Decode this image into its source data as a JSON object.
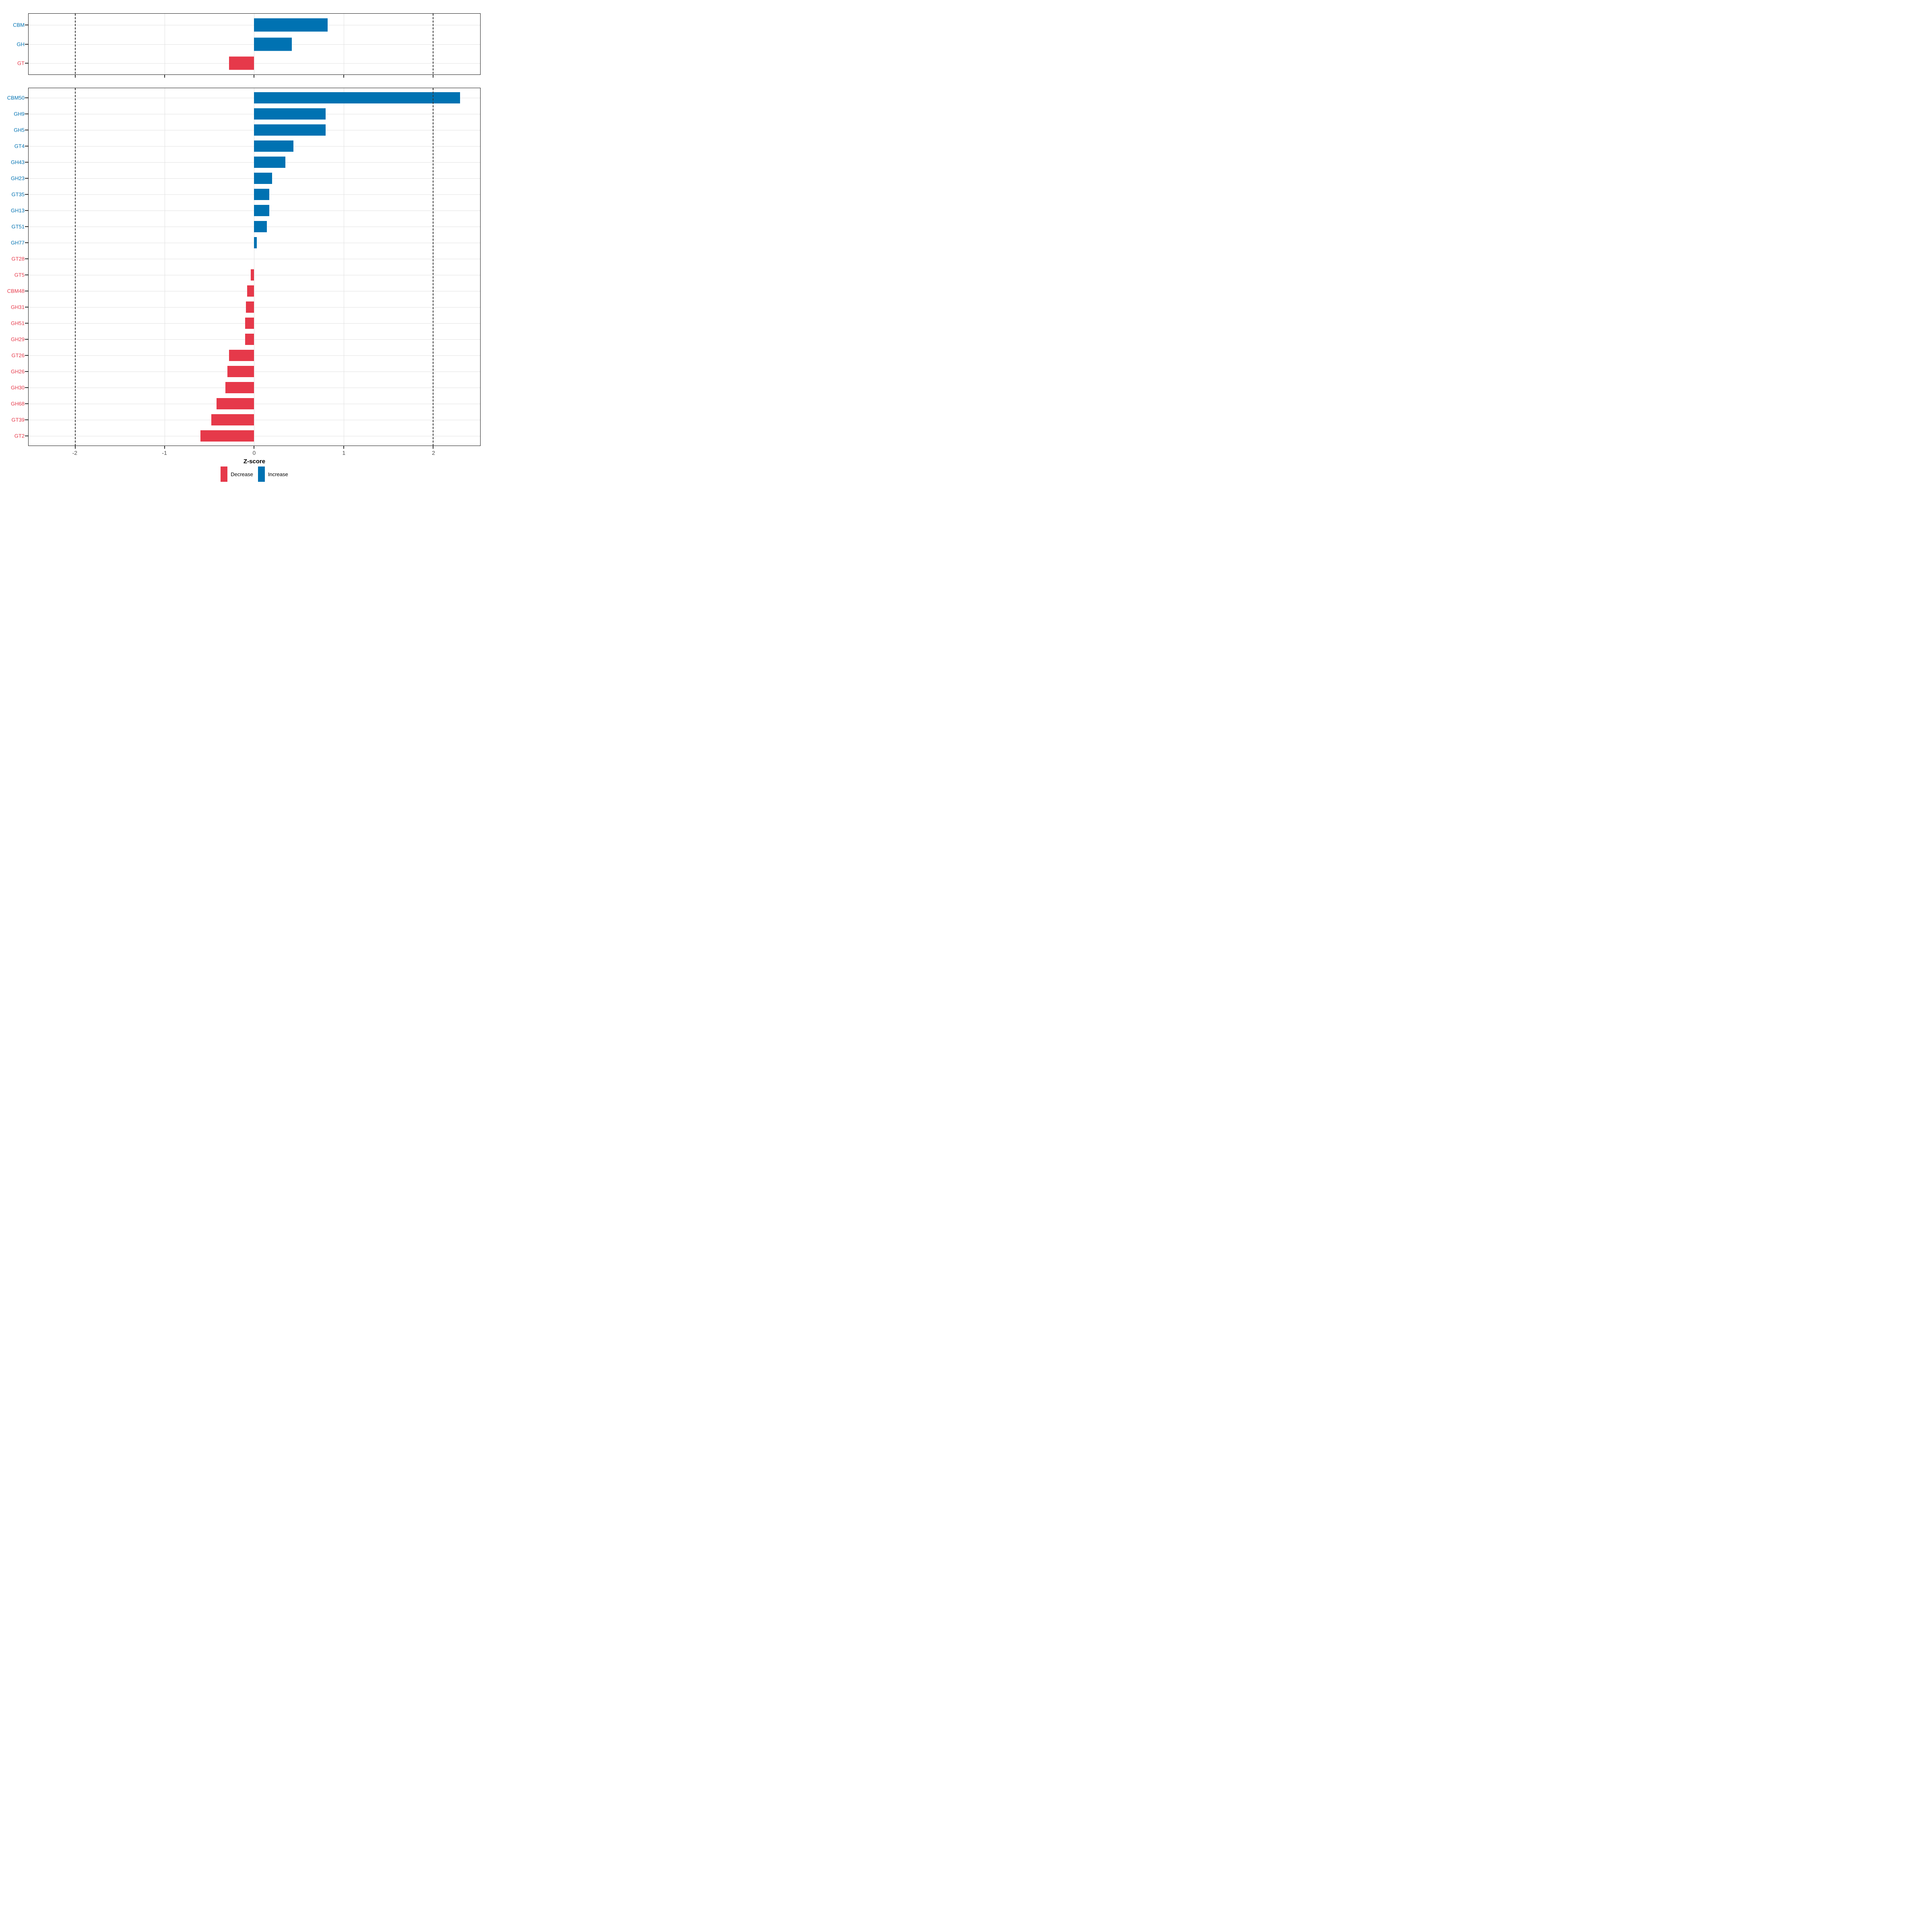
{
  "colors": {
    "increase": "#0072B2",
    "decrease": "#E6394A",
    "grid": "#E2E2E2",
    "dashed": "#3A3A3A",
    "tick_text": "#4D4D4D",
    "panel_border": "#1A1A1A",
    "background": "#FFFFFF"
  },
  "axis": {
    "label": "Z-score",
    "ticks": [
      -2,
      -1,
      0,
      1,
      2
    ],
    "xmin": -2.52,
    "xmax": 2.525,
    "reference_lines": [
      -2,
      2
    ]
  },
  "legend": {
    "items": [
      {
        "label": "Decrease",
        "direction": "decrease"
      },
      {
        "label": "Increase",
        "direction": "increase"
      }
    ]
  },
  "chart_data": [
    {
      "type": "bar",
      "orientation": "horizontal",
      "panel": "enzyme-class-summary",
      "title": "",
      "xlabel": "Z-score",
      "xlim": [
        -2.52,
        2.525
      ],
      "grid": true,
      "legend_position": "bottom",
      "categories": [
        "CBM",
        "GH",
        "GT"
      ],
      "values": [
        0.82,
        0.42,
        -0.28
      ],
      "directions": [
        "increase",
        "increase",
        "decrease"
      ]
    },
    {
      "type": "bar",
      "orientation": "horizontal",
      "panel": "cazyme-families",
      "title": "",
      "xlabel": "Z-score",
      "xlim": [
        -2.52,
        2.525
      ],
      "grid": true,
      "legend_position": "bottom",
      "categories": [
        "CBM50",
        "GH9",
        "GH5",
        "GT4",
        "GH43",
        "GH23",
        "GT35",
        "GH13",
        "GT51",
        "GH77",
        "GT28",
        "GT5",
        "CBM48",
        "GH31",
        "GH51",
        "GH29",
        "GT26",
        "GH26",
        "GH30",
        "GH68",
        "GT39",
        "GT2"
      ],
      "values": [
        2.3,
        0.8,
        0.8,
        0.44,
        0.35,
        0.2,
        0.17,
        0.17,
        0.14,
        0.03,
        0.0,
        -0.04,
        -0.08,
        -0.09,
        -0.1,
        -0.1,
        -0.28,
        -0.3,
        -0.32,
        -0.42,
        -0.48,
        -0.6
      ],
      "directions": [
        "increase",
        "increase",
        "increase",
        "increase",
        "increase",
        "increase",
        "increase",
        "increase",
        "increase",
        "increase",
        "decrease",
        "decrease",
        "decrease",
        "decrease",
        "decrease",
        "decrease",
        "decrease",
        "decrease",
        "decrease",
        "decrease",
        "decrease",
        "decrease"
      ]
    }
  ]
}
